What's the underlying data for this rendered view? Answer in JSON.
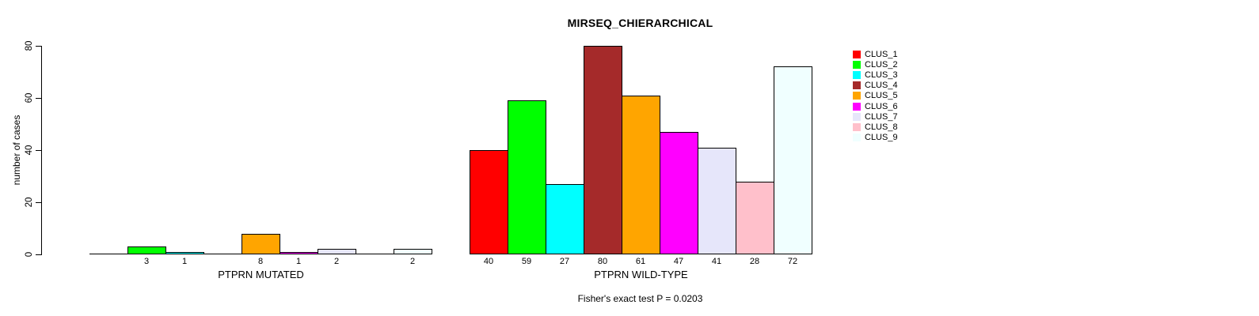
{
  "chart": {
    "title": "MIRSEQ_CHIERARCHICAL",
    "ylabel": "number of cases",
    "footer": "Fisher's exact test P = 0.0203"
  },
  "chart_data": {
    "type": "bar",
    "title": "MIRSEQ_CHIERARCHICAL",
    "ylabel": "number of cases",
    "xlabel": "",
    "ylim": [
      0,
      80
    ],
    "yticks": [
      0,
      20,
      40,
      60,
      80
    ],
    "grid": false,
    "legend_position": "top-right",
    "categories": [
      "PTPRN MUTATED",
      "PTPRN WILD-TYPE"
    ],
    "series": [
      {
        "name": "CLUS_1",
        "color": "#FF0000",
        "values": [
          0,
          40
        ]
      },
      {
        "name": "CLUS_2",
        "color": "#00FF00",
        "values": [
          3,
          59
        ]
      },
      {
        "name": "CLUS_3",
        "color": "#00FFFF",
        "values": [
          1,
          27
        ]
      },
      {
        "name": "CLUS_4",
        "color": "#A52A2A",
        "values": [
          0,
          80
        ]
      },
      {
        "name": "CLUS_5",
        "color": "#FFA500",
        "values": [
          8,
          61
        ]
      },
      {
        "name": "CLUS_6",
        "color": "#FF00FF",
        "values": [
          1,
          47
        ]
      },
      {
        "name": "CLUS_7",
        "color": "#E6E6FA",
        "values": [
          2,
          41
        ]
      },
      {
        "name": "CLUS_8",
        "color": "#FFC0CB",
        "values": [
          0,
          28
        ]
      },
      {
        "name": "CLUS_9",
        "color": "#F0FFFF",
        "values": [
          2,
          72
        ]
      }
    ],
    "value_labels_shown": true,
    "zero_value_labels_hidden": true,
    "annotation": "Fisher's exact test P = 0.0203"
  }
}
